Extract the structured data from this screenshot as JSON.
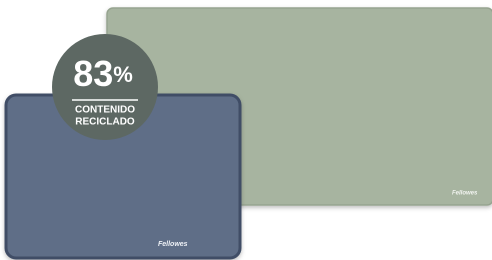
{
  "badge": {
    "value": "83",
    "unit": "%",
    "line1": "CONTENIDO",
    "line2": "RECICLADO"
  },
  "brand_labels": [
    "Fellowes",
    "Fellowes"
  ]
}
